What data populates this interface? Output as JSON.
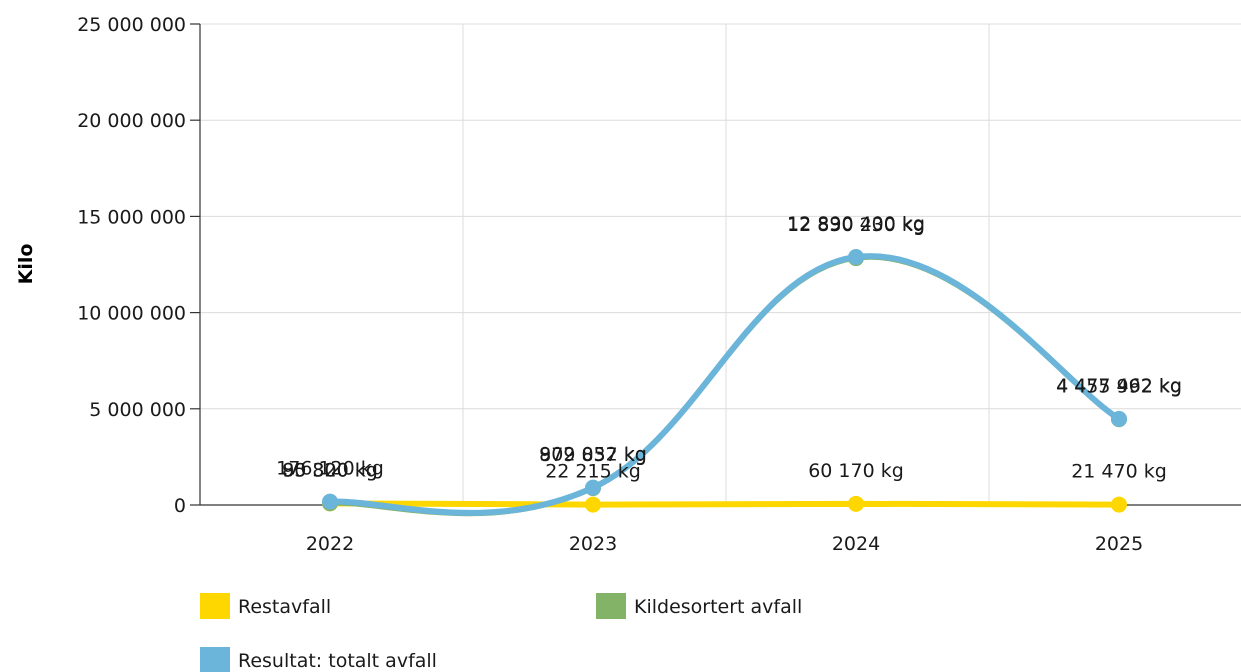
{
  "chart_data": {
    "type": "line",
    "title": "",
    "xlabel": "",
    "ylabel": "Kilo",
    "categories": [
      "2022",
      "2023",
      "2024",
      "2025"
    ],
    "ylim": [
      0,
      25000000
    ],
    "yticks": [
      0,
      5000000,
      10000000,
      15000000,
      20000000,
      25000000
    ],
    "ytick_labels": [
      "0",
      "5 000 000",
      "10 000 000",
      "15 000 000",
      "20 000 000",
      "25 000 000"
    ],
    "grid": true,
    "smooth": true,
    "legend_position": "bottom",
    "series": [
      {
        "name": "Restavfall",
        "color": "#FFD700",
        "values": [
          85820,
          22215,
          60170,
          21470
        ],
        "labels": [
          "85 820 kg",
          "22 215 kg",
          "60 170 kg",
          "21 470 kg"
        ]
      },
      {
        "name": "Kildesortert avfall",
        "color": "#82B366",
        "values": [
          90300,
          879837,
          12830230,
          4455992
        ],
        "labels": [
          "90 300 kg",
          "879 837 kg",
          "12 830 230 kg",
          "4 455 992 kg"
        ]
      },
      {
        "name": "Resultat: totalt avfall",
        "color": "#6BB5DA",
        "values": [
          176120,
          902052,
          12890400,
          4477462
        ],
        "labels": [
          "176 120 kg",
          "902 052 kg",
          "12 890 400 kg",
          "4 477 462 kg"
        ]
      }
    ]
  }
}
